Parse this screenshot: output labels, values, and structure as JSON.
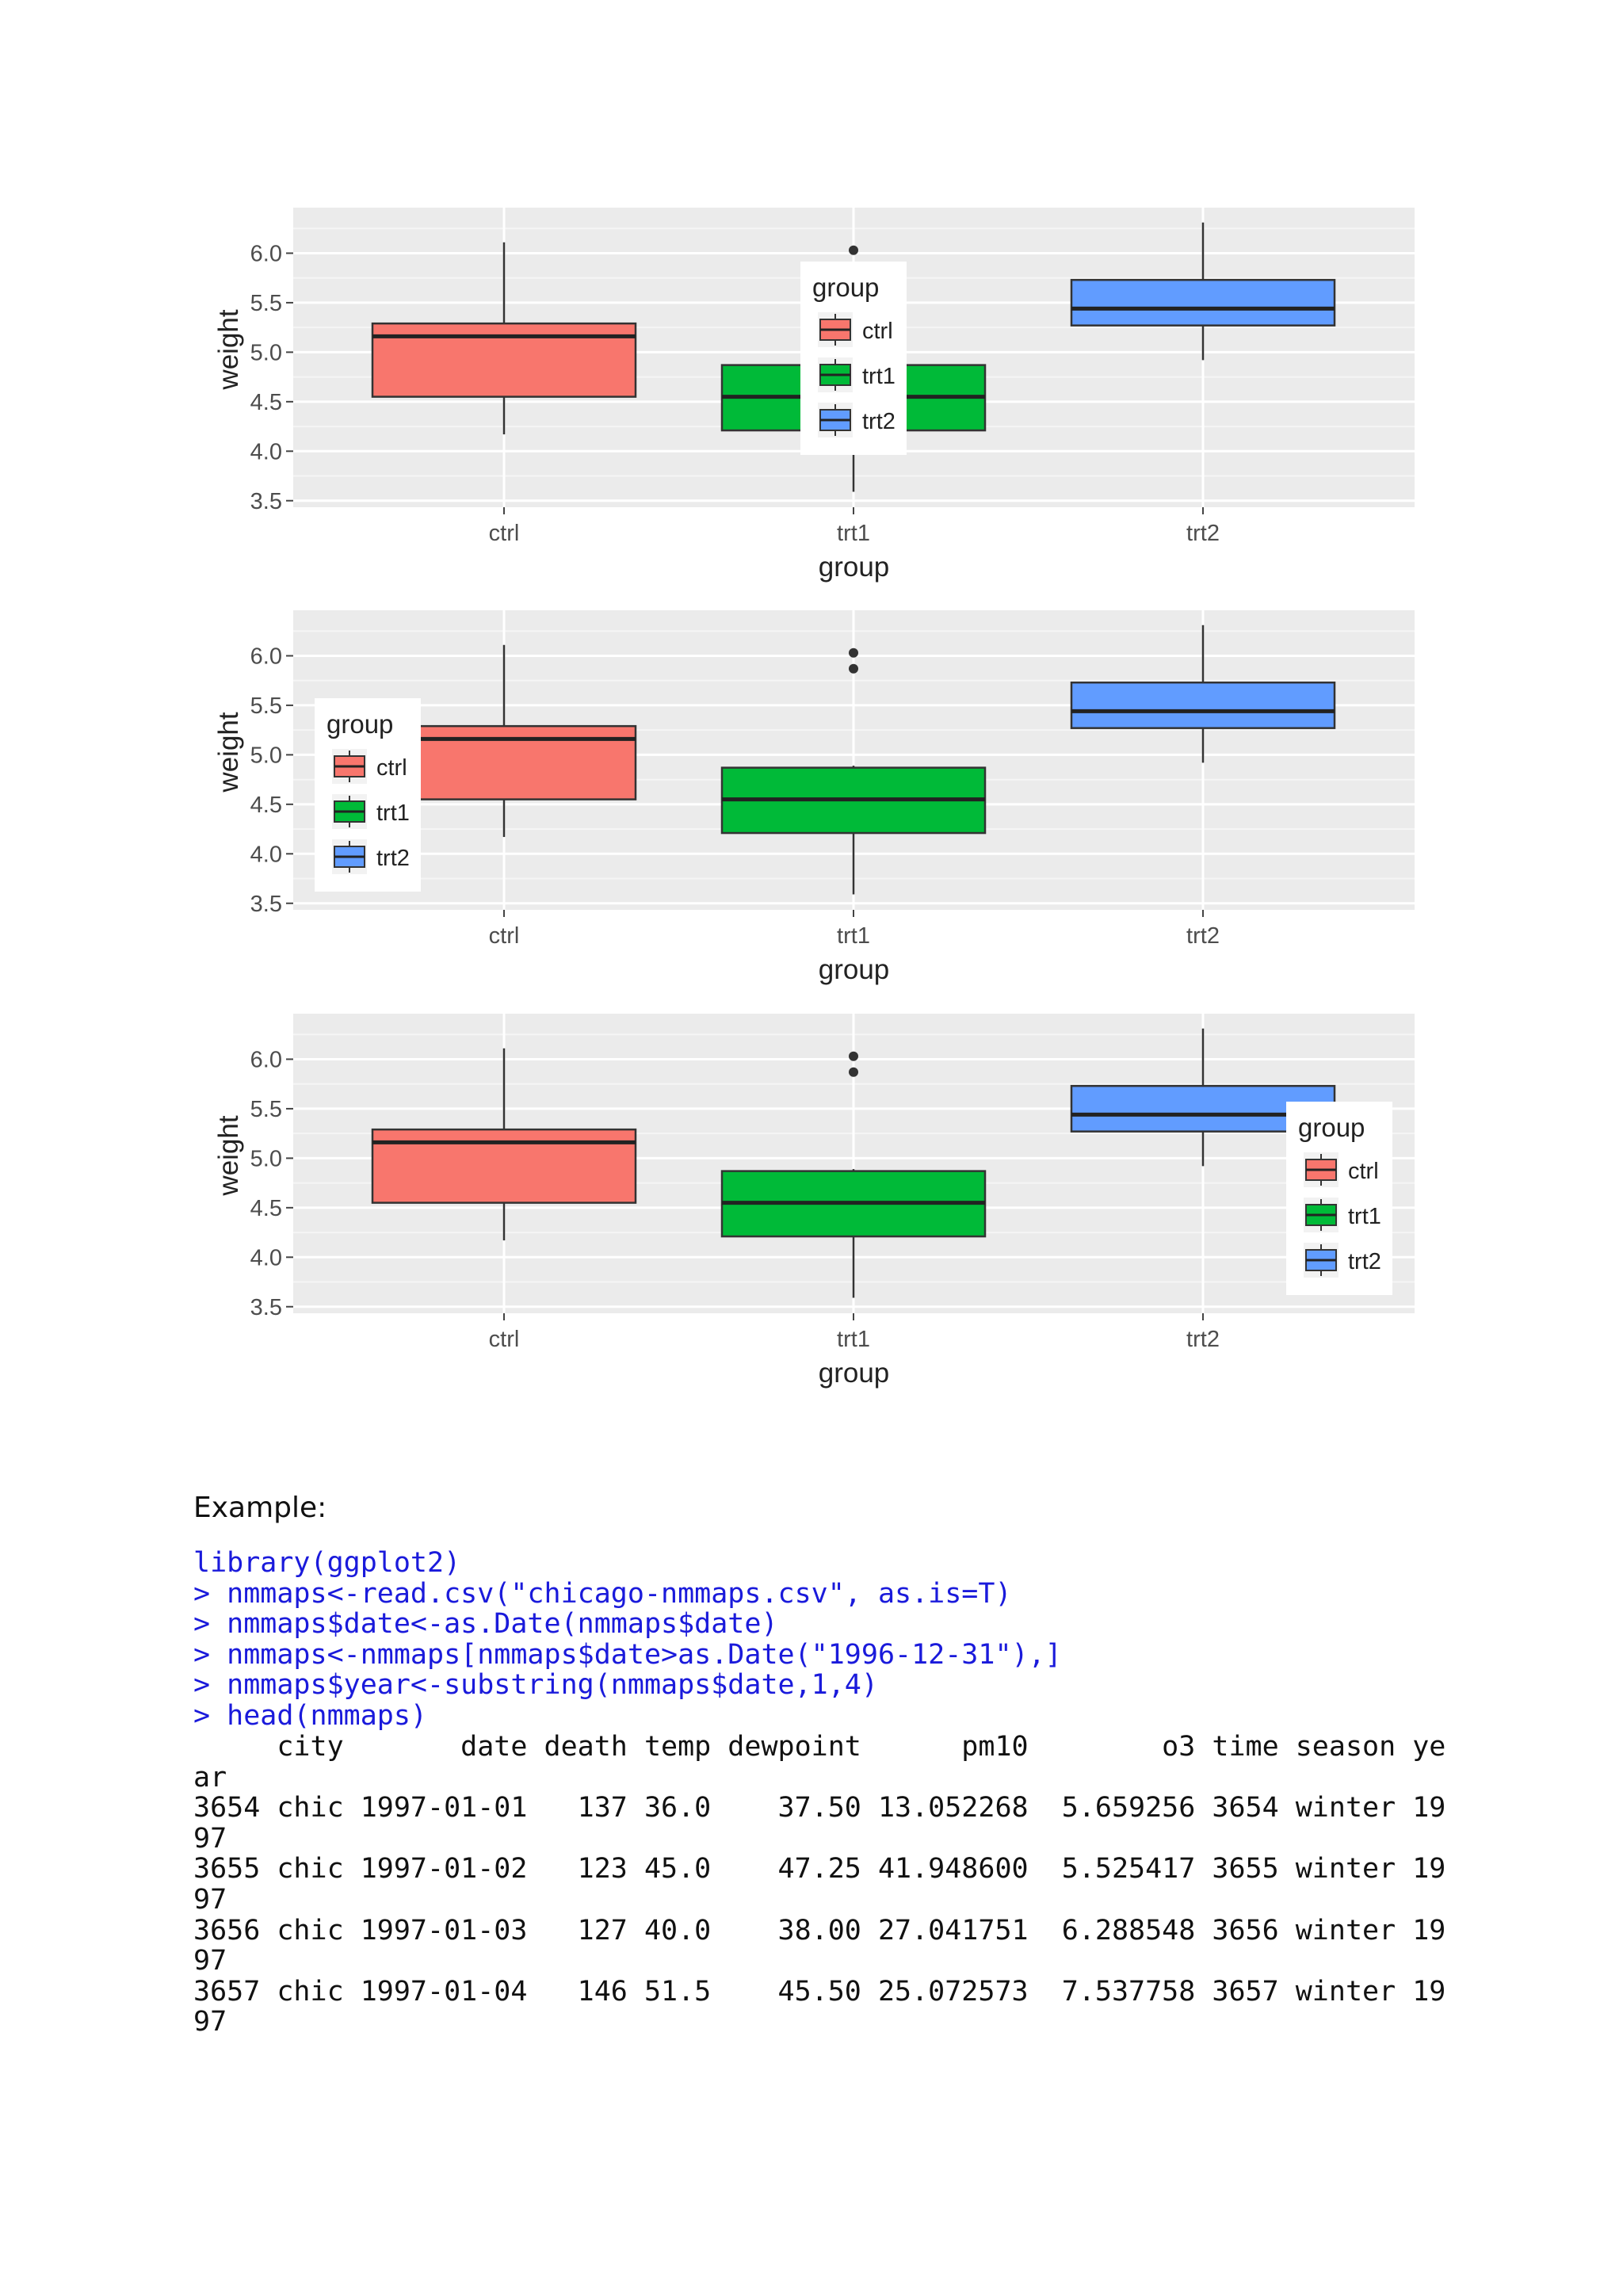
{
  "chart_data": [
    {
      "type": "boxplot",
      "xlabel": "group",
      "ylabel": "weight",
      "categories": [
        "ctrl",
        "trt1",
        "trt2"
      ],
      "ylim": [
        3.5,
        6.25
      ],
      "yticks": [
        "3.5",
        "4.0",
        "4.5",
        "5.0",
        "5.5",
        "6.0"
      ],
      "grid": true,
      "boxes": [
        {
          "category": "ctrl",
          "min": 4.17,
          "q1": 4.55,
          "median": 5.16,
          "q3": 5.29,
          "max": 6.11,
          "outliers": [],
          "color": "#F8766D"
        },
        {
          "category": "trt1",
          "min": 3.59,
          "q1": 4.21,
          "median": 4.55,
          "q3": 4.87,
          "max": 4.89,
          "outliers": [
            6.03
          ],
          "color": "#00BA38"
        },
        {
          "category": "trt2",
          "min": 4.92,
          "q1": 5.27,
          "median": 5.44,
          "q3": 5.73,
          "max": 6.31,
          "outliers": [],
          "color": "#619CFF"
        }
      ],
      "legend": {
        "title": "group",
        "items": [
          "ctrl",
          "trt1",
          "trt2"
        ],
        "position": "center"
      }
    },
    {
      "type": "boxplot",
      "xlabel": "group",
      "ylabel": "weight",
      "categories": [
        "ctrl",
        "trt1",
        "trt2"
      ],
      "ylim": [
        3.5,
        6.25
      ],
      "yticks": [
        "3.5",
        "4.0",
        "4.5",
        "5.0",
        "5.5",
        "6.0"
      ],
      "grid": true,
      "boxes": [
        {
          "category": "ctrl",
          "min": 4.17,
          "q1": 4.55,
          "median": 5.16,
          "q3": 5.29,
          "max": 6.11,
          "outliers": [],
          "color": "#F8766D"
        },
        {
          "category": "trt1",
          "min": 3.59,
          "q1": 4.21,
          "median": 4.55,
          "q3": 4.87,
          "max": 4.89,
          "outliers": [
            5.87,
            6.03
          ],
          "color": "#00BA38"
        },
        {
          "category": "trt2",
          "min": 4.92,
          "q1": 5.27,
          "median": 5.44,
          "q3": 5.73,
          "max": 6.31,
          "outliers": [],
          "color": "#619CFF"
        }
      ],
      "legend": {
        "title": "group",
        "items": [
          "ctrl",
          "trt1",
          "trt2"
        ],
        "position": "left"
      }
    },
    {
      "type": "boxplot",
      "xlabel": "group",
      "ylabel": "weight",
      "categories": [
        "ctrl",
        "trt1",
        "trt2"
      ],
      "ylim": [
        3.5,
        6.25
      ],
      "yticks": [
        "3.5",
        "4.0",
        "4.5",
        "5.0",
        "5.5",
        "6.0"
      ],
      "grid": true,
      "boxes": [
        {
          "category": "ctrl",
          "min": 4.17,
          "q1": 4.55,
          "median": 5.16,
          "q3": 5.29,
          "max": 6.11,
          "outliers": [],
          "color": "#F8766D"
        },
        {
          "category": "trt1",
          "min": 3.59,
          "q1": 4.21,
          "median": 4.55,
          "q3": 4.87,
          "max": 4.89,
          "outliers": [
            5.87,
            6.03
          ],
          "color": "#00BA38"
        },
        {
          "category": "trt2",
          "min": 4.92,
          "q1": 5.27,
          "median": 5.44,
          "q3": 5.73,
          "max": 6.31,
          "outliers": [],
          "color": "#619CFF"
        }
      ],
      "legend": {
        "title": "group",
        "items": [
          "ctrl",
          "trt1",
          "trt2"
        ],
        "position": "right"
      }
    }
  ],
  "text": {
    "example_label": "Example:",
    "code_lines": [
      "library(ggplot2)",
      "> nmmaps<-read.csv(\"chicago-nmmaps.csv\", as.is=T)",
      "> nmmaps$date<-as.Date(nmmaps$date)",
      "> nmmaps<-nmmaps[nmmaps$date>as.Date(\"1996-12-31\"),]",
      "> nmmaps$year<-substring(nmmaps$date,1,4)",
      "> head(nmmaps)"
    ],
    "output_lines": [
      "     city       date death temp dewpoint      pm10        o3 time season ye",
      "ar",
      "3654 chic 1997-01-01   137 36.0    37.50 13.052268  5.659256 3654 winter 19",
      "97",
      "3655 chic 1997-01-02   123 45.0    47.25 41.948600  5.525417 3655 winter 19",
      "97",
      "3656 chic 1997-01-03   127 40.0    38.00 27.041751  6.288548 3656 winter 19",
      "97",
      "3657 chic 1997-01-04   146 51.5    45.50 25.072573  7.537758 3657 winter 19",
      "97"
    ]
  }
}
